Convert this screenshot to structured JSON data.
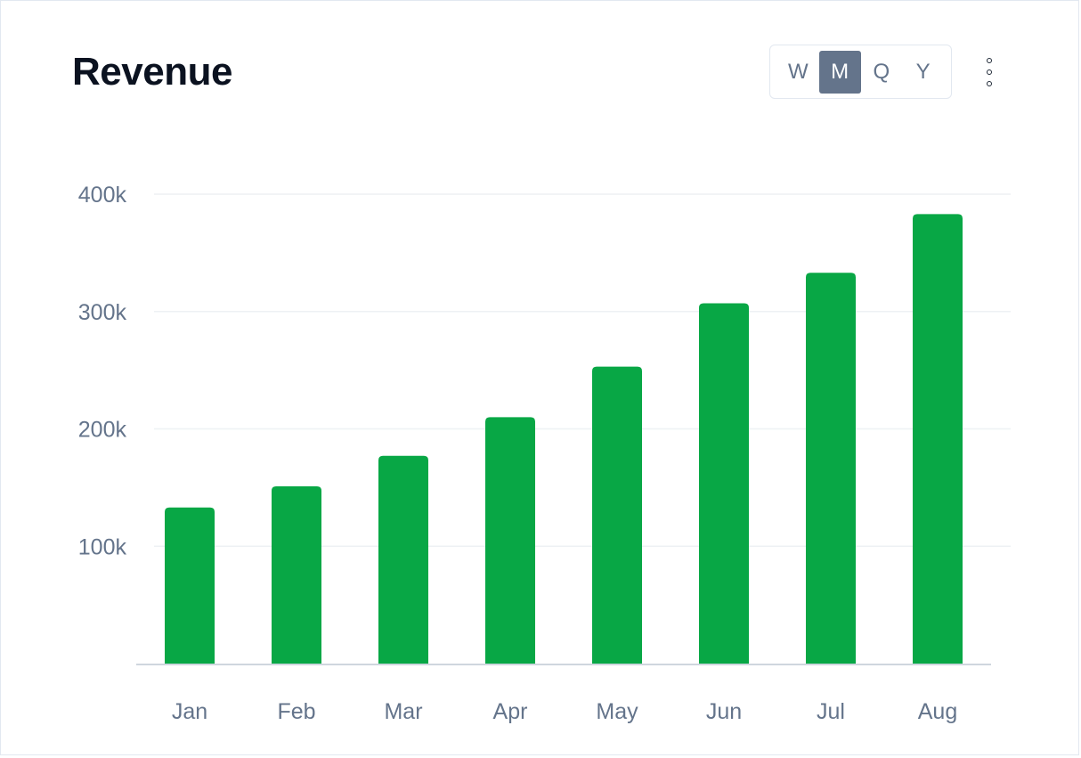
{
  "header": {
    "title": "Revenue",
    "range_options": [
      "W",
      "M",
      "Q",
      "Y"
    ],
    "selected_range": "M",
    "more_icon": "kebab-vertical-icon"
  },
  "colors": {
    "bar": "#08a745",
    "gridline": "#eef1f4",
    "axis": "#cfd6de",
    "tick_text": "#64748b",
    "title": "#0b1220"
  },
  "chart_data": {
    "type": "bar",
    "title": "Revenue",
    "xlabel": "",
    "ylabel": "",
    "categories": [
      "Jan",
      "Feb",
      "Mar",
      "Apr",
      "May",
      "Jun",
      "Jul",
      "Aug"
    ],
    "values": [
      133000,
      151000,
      177000,
      210000,
      253000,
      307000,
      333000,
      383000
    ],
    "ylim": [
      0,
      400000
    ],
    "yticks": [
      100000,
      200000,
      300000,
      400000
    ],
    "ytick_labels": [
      "100k",
      "200k",
      "300k",
      "400k"
    ],
    "grid": true,
    "legend": "none"
  }
}
